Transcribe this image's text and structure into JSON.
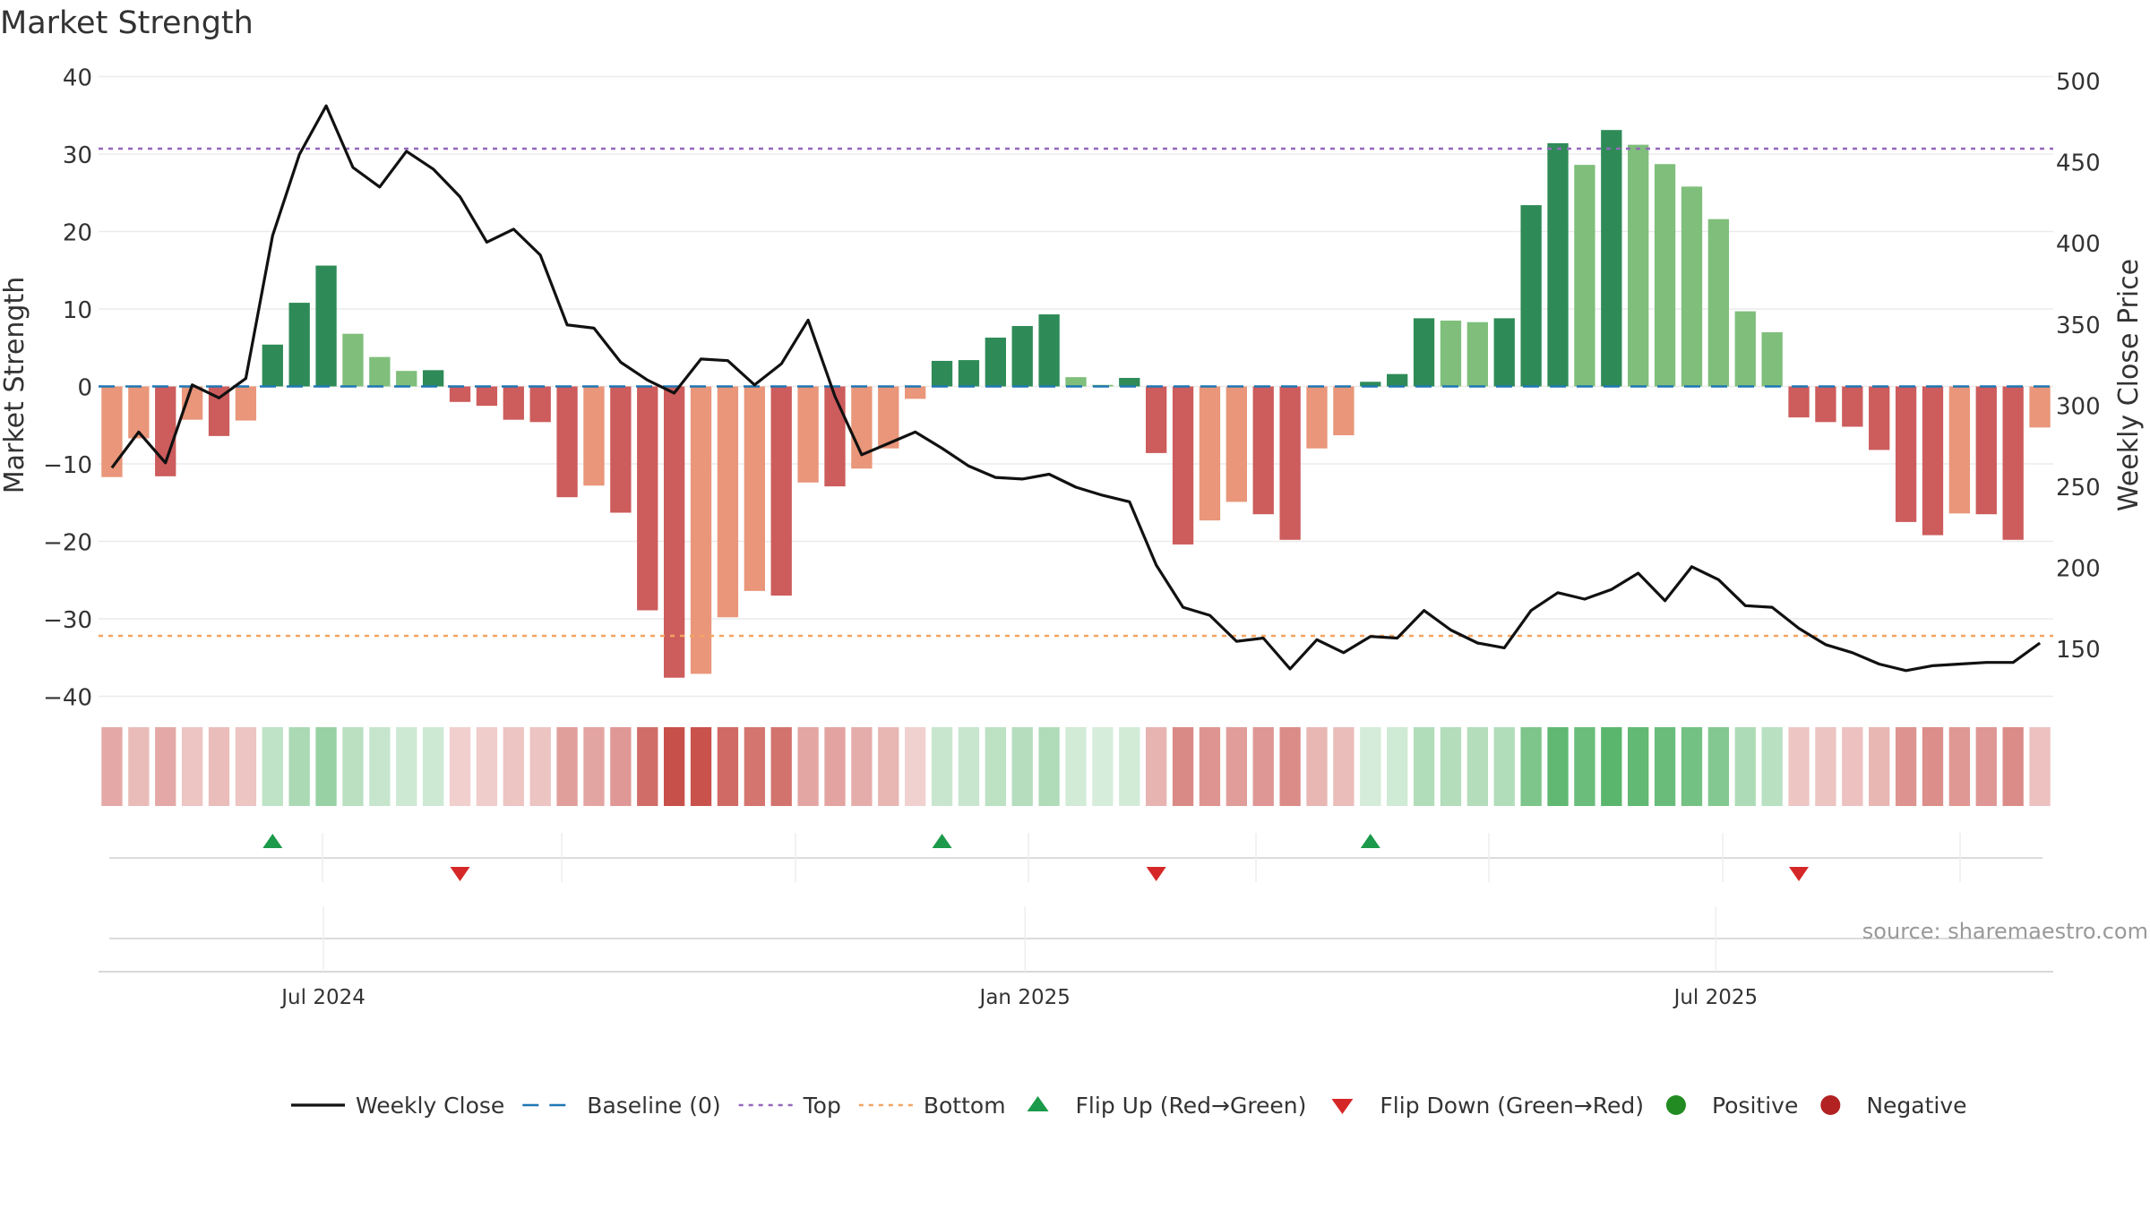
{
  "chart_data": {
    "type": "bar",
    "title": "Market Strength",
    "ylabel": "Market Strength",
    "y2label": "Weekly Close Price",
    "ylim": [
      -42,
      40
    ],
    "y2lim": [
      105,
      500
    ],
    "yticks": [
      40,
      30,
      20,
      10,
      0,
      -10,
      -20,
      -30,
      -40
    ],
    "y2ticks": [
      500,
      450,
      400,
      350,
      300,
      250,
      200,
      150
    ],
    "top_line": 30.7,
    "bottom_line": -32.2,
    "date_labels": [
      "Jul 2024",
      "Jan 2025",
      "Jul 2025"
    ],
    "date_label_weeks": [
      8.4,
      34.6,
      60.4
    ],
    "values": [
      -11.7,
      -6.7,
      -11.6,
      -4.3,
      -6.4,
      -4.4,
      5.4,
      10.8,
      15.6,
      6.8,
      3.8,
      2.0,
      2.1,
      -2.0,
      -2.5,
      -4.3,
      -4.6,
      -14.3,
      -12.8,
      -16.3,
      -28.9,
      -37.6,
      -37.1,
      -29.8,
      -26.4,
      -27.0,
      -12.4,
      -12.9,
      -10.6,
      -8.0,
      -1.6,
      3.3,
      3.4,
      6.3,
      7.8,
      9.3,
      1.2,
      0.2,
      1.1,
      -8.6,
      -20.4,
      -17.3,
      -14.9,
      -16.5,
      -19.8,
      -8.0,
      -6.3,
      0.6,
      1.6,
      8.8,
      8.5,
      8.3,
      8.8,
      23.4,
      31.4,
      28.6,
      33.1,
      31.2,
      28.7,
      25.8,
      21.6,
      9.7,
      7.0,
      -4.0,
      -4.6,
      -5.2,
      -8.2,
      -17.5,
      -19.2,
      -16.4,
      -16.5,
      -19.8,
      -5.3
    ],
    "weekly_close": [
      262,
      284,
      265,
      313,
      305,
      317,
      405,
      455,
      485,
      447,
      435,
      457,
      446,
      429,
      401,
      409,
      393,
      350,
      348,
      327,
      316,
      308,
      329,
      328,
      313,
      326,
      353,
      306,
      270,
      277,
      284,
      274,
      263,
      256,
      255,
      258,
      250,
      245,
      241,
      202,
      176,
      171,
      155,
      157,
      138,
      156,
      148,
      158,
      157,
      174,
      162,
      154,
      151,
      174,
      185,
      181,
      187,
      197,
      180,
      201,
      193,
      177,
      176,
      163,
      153,
      148,
      141,
      137,
      140,
      141,
      142,
      142,
      154
    ],
    "flip_up_weeks": [
      6,
      31,
      47
    ],
    "flip_down_weeks": [
      13,
      39,
      63
    ],
    "source": "source: sharemaestro.com",
    "legend": [
      "Weekly Close",
      "Baseline (0)",
      "Top",
      "Bottom",
      "Flip Up (Red→Green)",
      "Flip Down (Green→Red)",
      "Positive",
      "Negative"
    ],
    "colors": {
      "pos_strong": "#2e8b57",
      "pos_light": "#7fbf7b",
      "neg_strong": "#cd5c5c",
      "neg_light": "#e9967a",
      "baseline": "#1f77b4",
      "top": "#9467bd",
      "bottom": "#f4a460",
      "close": "#111111",
      "flip_up": "#1a9a4a",
      "flip_down": "#d62728",
      "positive": "#228b22",
      "negative": "#b22222"
    }
  }
}
